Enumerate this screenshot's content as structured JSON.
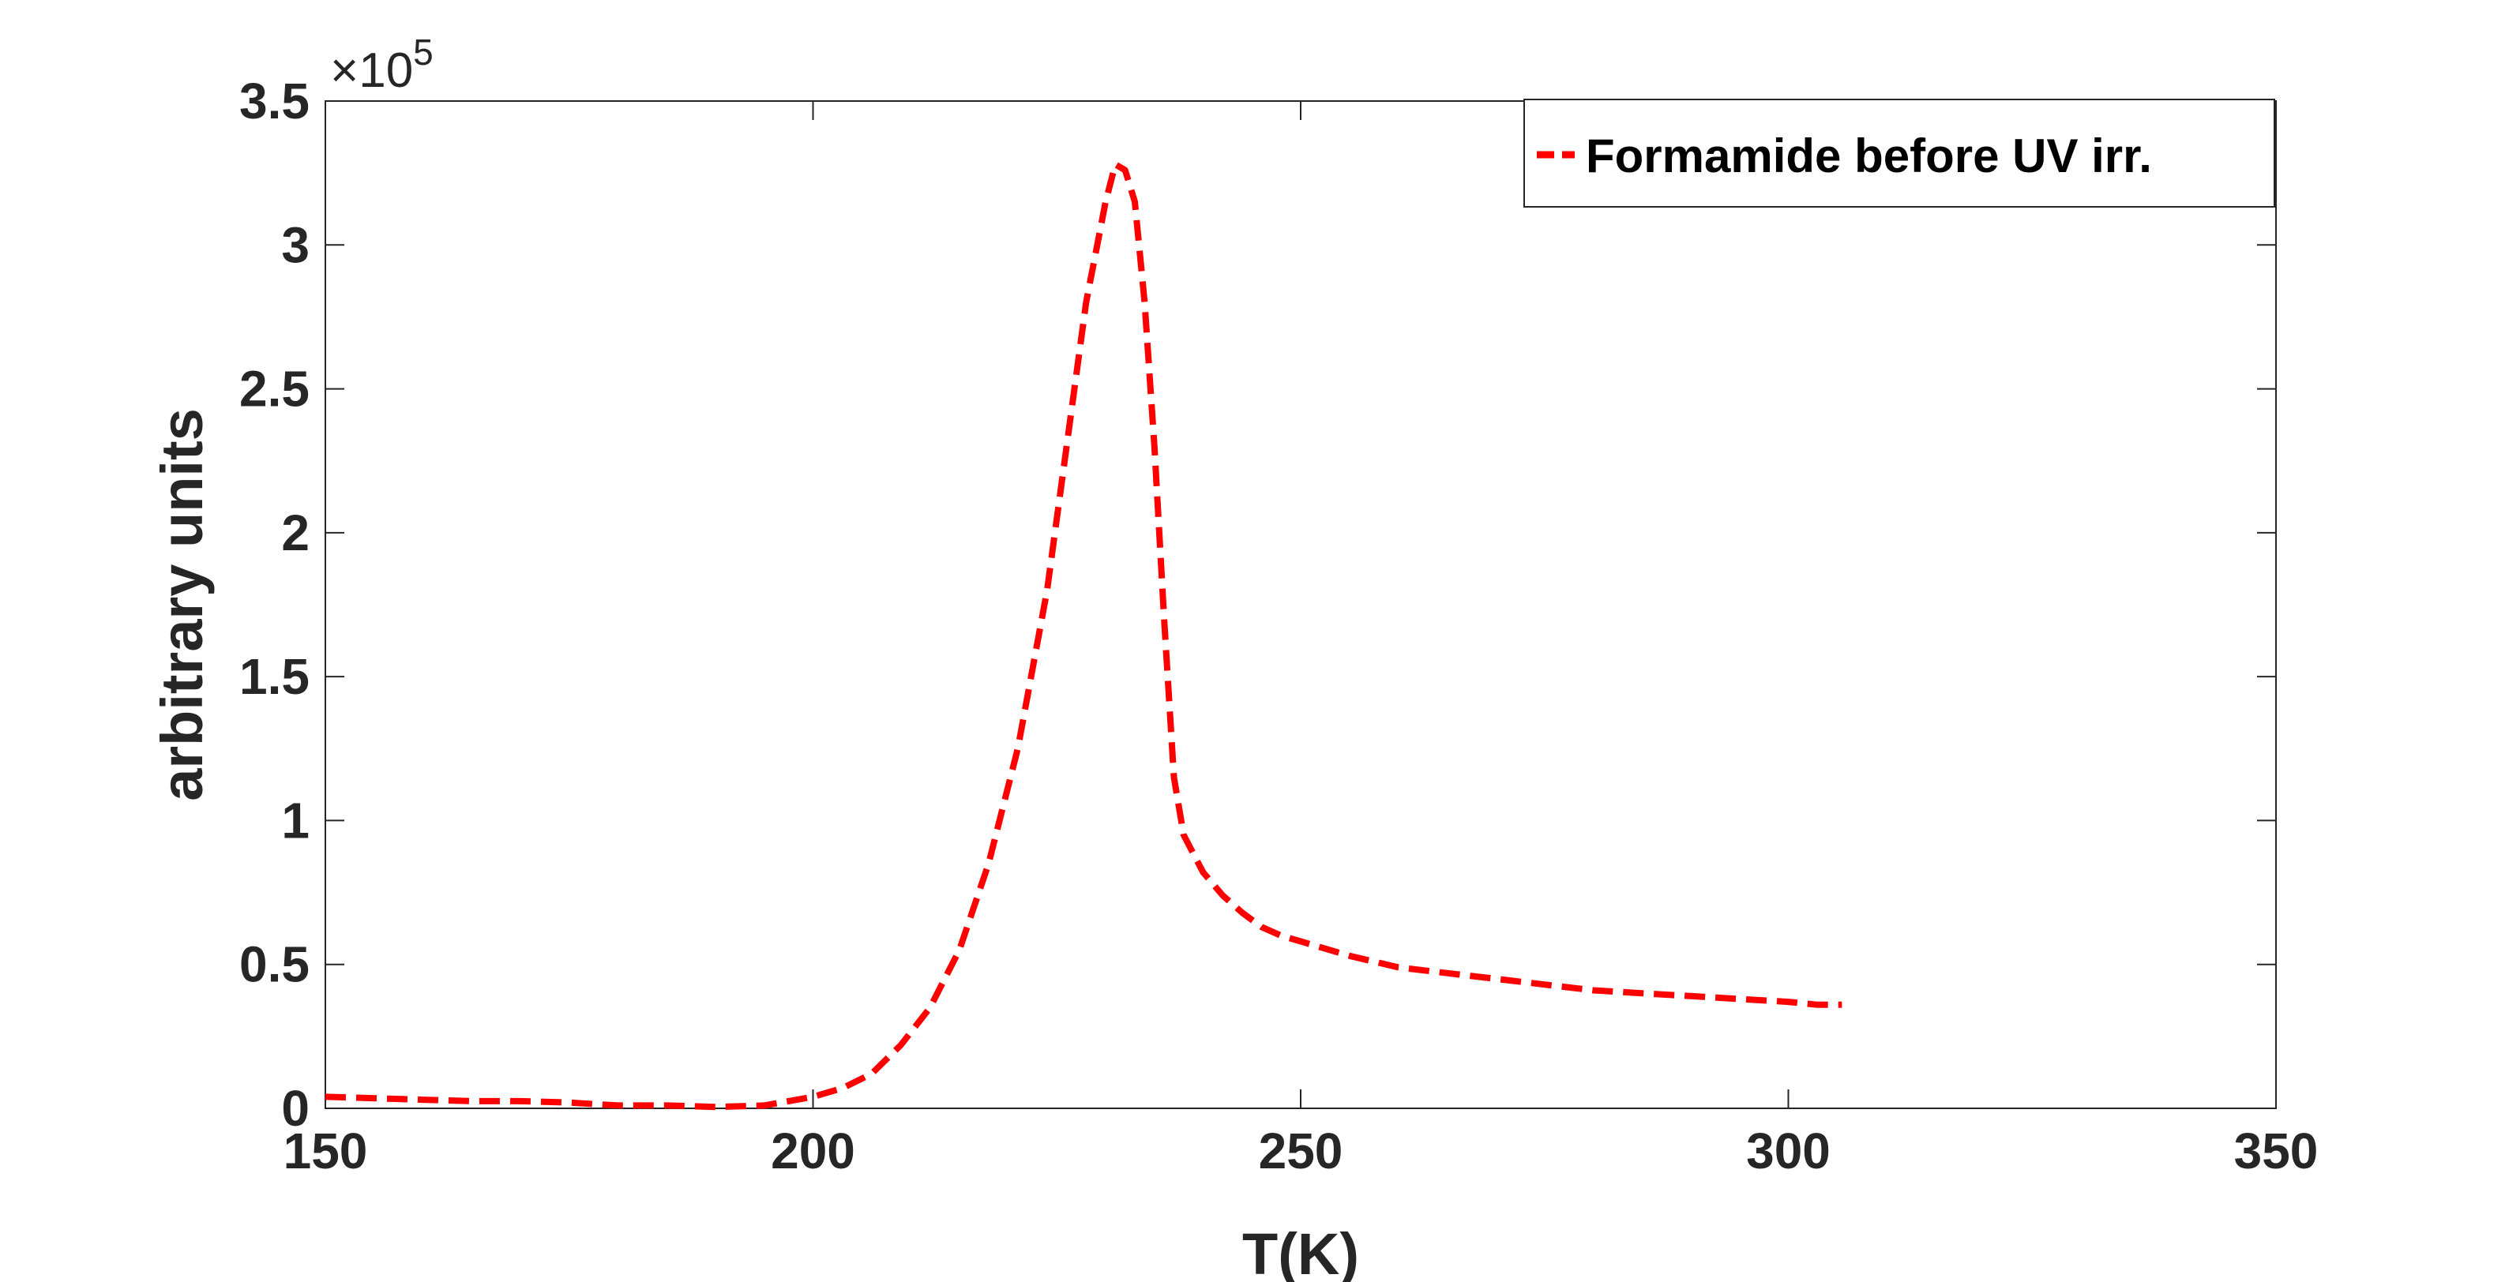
{
  "chart_data": {
    "type": "line",
    "title": "",
    "xlabel": "T(K)",
    "ylabel": "arbitrary units",
    "xlim": [
      150,
      350
    ],
    "ylim": [
      0,
      3.5
    ],
    "y_exponent_label": "×10",
    "y_exponent_power": "5",
    "xticks": [
      150,
      200,
      250,
      300,
      350
    ],
    "xtick_labels": [
      "150",
      "200",
      "250",
      "300",
      "350"
    ],
    "yticks": [
      0,
      0.5,
      1,
      1.5,
      2,
      2.5,
      3,
      3.5
    ],
    "ytick_labels": [
      "0",
      "0.5",
      "1",
      "1.5",
      "2",
      "2.5",
      "3",
      "3.5"
    ],
    "grid": false,
    "legend_position": "top-right",
    "series": [
      {
        "name": "Formamide before UV irr.",
        "color": "#ff0000",
        "line_style": "dashed",
        "x": [
          150,
          155,
          160,
          165,
          170,
          175,
          180,
          185,
          190,
          195,
          200,
          203,
          206,
          209,
          212,
          215,
          218,
          221,
          224,
          226,
          228,
          230,
          231,
          232,
          233,
          234,
          235,
          236,
          237,
          238,
          240,
          242,
          244,
          246,
          248,
          250,
          255,
          260,
          265,
          270,
          275,
          280,
          285,
          290,
          295,
          300,
          303,
          305.5
        ],
        "values": [
          0.04,
          0.035,
          0.03,
          0.025,
          0.025,
          0.02,
          0.01,
          0.01,
          0.005,
          0.01,
          0.04,
          0.07,
          0.12,
          0.22,
          0.35,
          0.55,
          0.85,
          1.25,
          1.8,
          2.3,
          2.8,
          3.15,
          3.28,
          3.26,
          3.15,
          2.8,
          2.3,
          1.7,
          1.15,
          0.95,
          0.82,
          0.74,
          0.68,
          0.63,
          0.6,
          0.58,
          0.53,
          0.49,
          0.47,
          0.45,
          0.43,
          0.41,
          0.4,
          0.39,
          0.38,
          0.37,
          0.36,
          0.36
        ]
      }
    ]
  }
}
